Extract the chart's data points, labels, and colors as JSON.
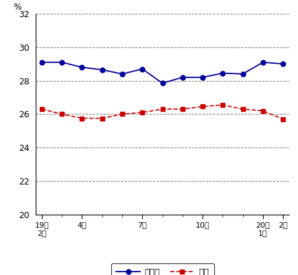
{
  "gifu_values": [
    29.1,
    29.1,
    28.8,
    28.65,
    28.4,
    28.7,
    27.85,
    28.2,
    28.2,
    28.45,
    28.4,
    29.1,
    29.0
  ],
  "gifu_x": [
    0,
    1,
    2,
    3,
    4,
    5,
    6,
    7,
    8,
    9,
    10,
    11,
    12
  ],
  "zenkoku_values": [
    26.3,
    26.0,
    25.75,
    25.75,
    26.0,
    26.1,
    26.3,
    26.3,
    26.45,
    26.55,
    26.3,
    26.2,
    25.7
  ],
  "zenkoku_x": [
    0,
    1,
    2,
    3,
    4,
    5,
    6,
    7,
    8,
    9,
    10,
    11,
    12
  ],
  "major_tick_positions": [
    0,
    2,
    5,
    8,
    11,
    12
  ],
  "all_tick_positions": [
    0,
    1,
    2,
    3,
    4,
    5,
    6,
    7,
    8,
    9,
    10,
    11,
    12
  ],
  "ylim": [
    20,
    32
  ],
  "yticks": [
    20,
    22,
    24,
    26,
    28,
    30,
    32
  ],
  "ylabel": "%",
  "gifu_color": "#000099",
  "zenkoku_color": "#cc0000",
  "background_color": "#ffffff",
  "legend_gifu": "岐阜県",
  "legend_zenkoku": "全国",
  "grid_color": "#808080",
  "spine_color": "#000000"
}
